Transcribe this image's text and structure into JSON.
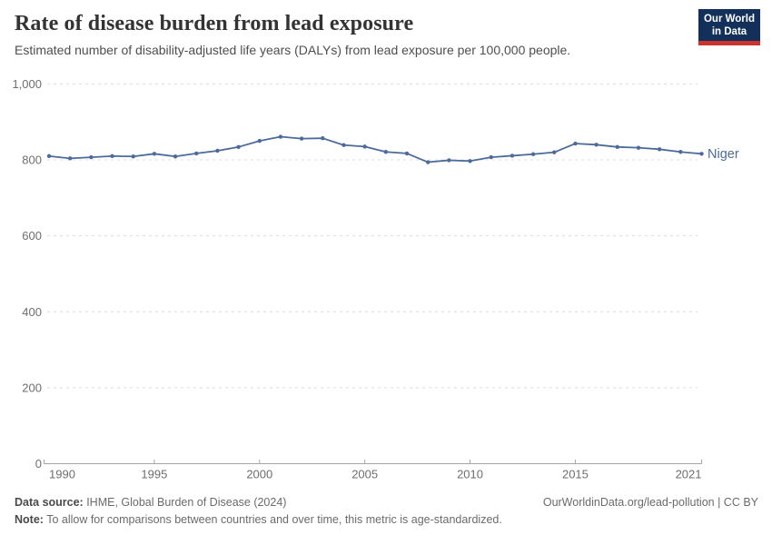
{
  "header": {
    "title": "Rate of disease burden from lead exposure",
    "subtitle": "Estimated number of disability-adjusted life years (DALYs) from lead exposure per 100,000 people.",
    "logo": {
      "line1": "Our World",
      "line2": "in Data",
      "bg_color": "#13305a",
      "stripe_color": "#cd322d"
    }
  },
  "chart_data": {
    "type": "line",
    "title": "Rate of disease burden from lead exposure",
    "xlabel": "",
    "ylabel": "",
    "xlim": [
      1990,
      2021
    ],
    "ylim": [
      0,
      1000
    ],
    "grid": "horizontal-dashed",
    "legend_position": "end-of-line-label",
    "x_ticks": [
      1990,
      1995,
      2000,
      2005,
      2010,
      2015,
      2021
    ],
    "y_ticks": [
      0,
      200,
      400,
      600,
      800,
      1000
    ],
    "y_tick_labels": [
      "0",
      "200",
      "400",
      "600",
      "800",
      "1,000"
    ],
    "x": [
      1990,
      1991,
      1992,
      1993,
      1994,
      1995,
      1996,
      1997,
      1998,
      1999,
      2000,
      2001,
      2002,
      2003,
      2004,
      2005,
      2006,
      2007,
      2008,
      2009,
      2010,
      2011,
      2012,
      2013,
      2014,
      2015,
      2016,
      2017,
      2018,
      2019,
      2020,
      2021
    ],
    "series": [
      {
        "name": "Niger",
        "color": "#4c6a9c",
        "values": [
          810,
          804,
          807,
          810,
          809,
          816,
          809,
          817,
          824,
          834,
          850,
          861,
          856,
          857,
          839,
          835,
          821,
          817,
          794,
          799,
          797,
          807,
          811,
          815,
          820,
          843,
          840,
          834,
          832,
          828,
          821,
          816
        ]
      }
    ],
    "colors": {
      "gridline": "#dcdcdc",
      "axis": "#a5a5a5",
      "tick_label": "#6e6e6e"
    }
  },
  "footer": {
    "datasource_label": "Data source:",
    "datasource_text": " IHME, Global Burden of Disease (2024)",
    "attribution": "OurWorldinData.org/lead-pollution | CC BY",
    "note_label": "Note:",
    "note_text": " To allow for comparisons between countries and over time, this metric is age-standardized."
  }
}
